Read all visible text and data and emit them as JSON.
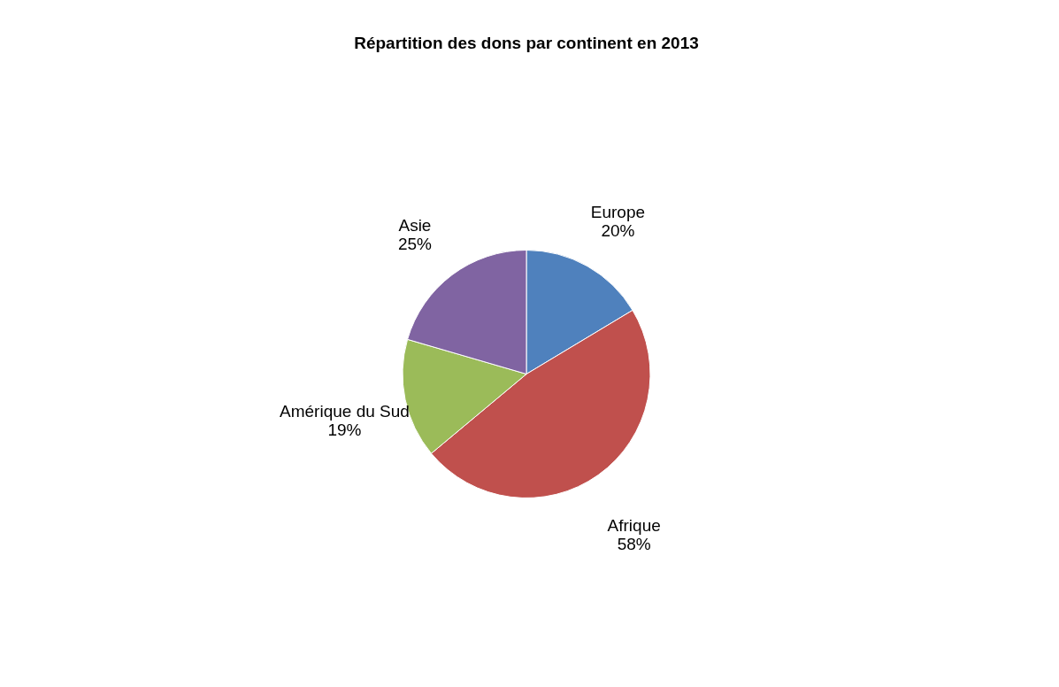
{
  "chart_data": {
    "type": "pie",
    "title": "Répartition des dons par continent en 2013",
    "categories": [
      "Europe",
      "Afrique",
      "Amérique du Sud",
      "Asie"
    ],
    "values": [
      20,
      58,
      19,
      25
    ],
    "colors": [
      "#4f81bd",
      "#c0504d",
      "#9bbb59",
      "#8064a2"
    ],
    "value_labels": [
      "20%",
      "58%",
      "19%",
      "25%"
    ],
    "legend": false
  }
}
